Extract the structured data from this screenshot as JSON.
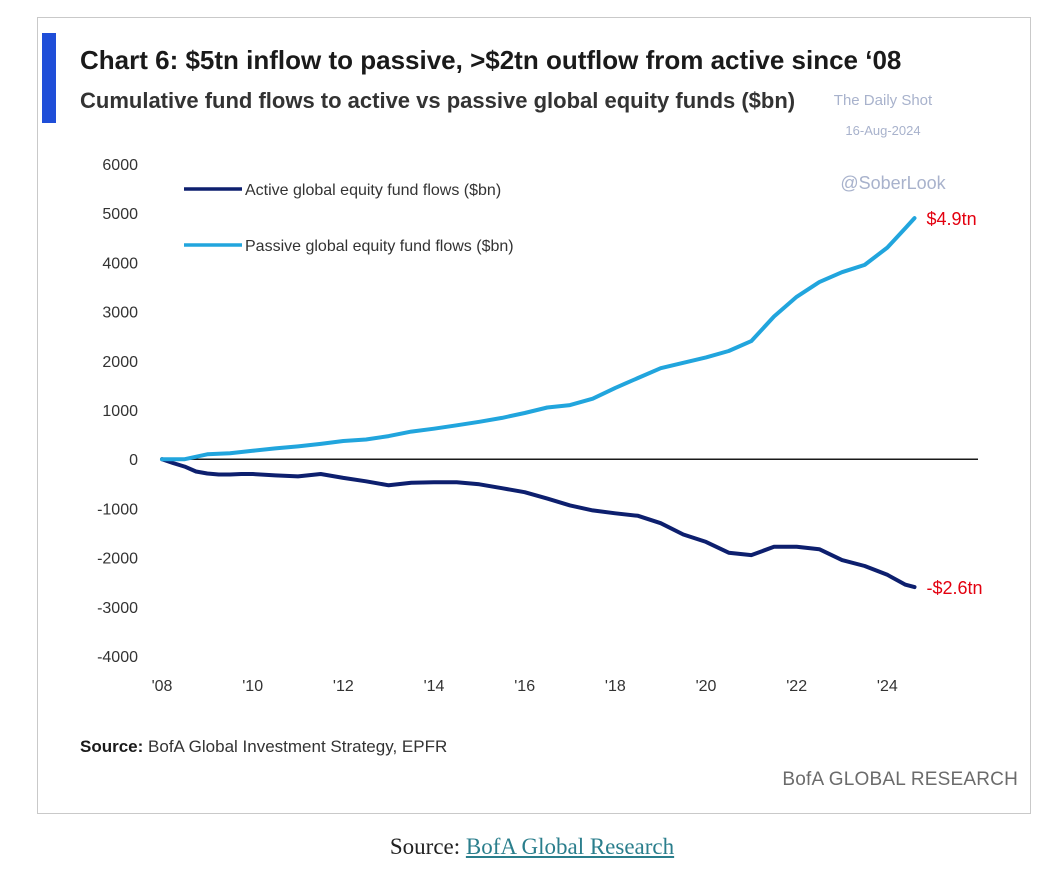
{
  "colors": {
    "accent_bar": "#1f4ed8",
    "active_series": "#0d1f6e",
    "passive_series": "#21a5dd",
    "end_label": "#e3000f",
    "zero_line": "#1a1a1a",
    "caption_link": "#2a7e8c"
  },
  "watermark": {
    "line1": "The Daily Shot",
    "line2": "16-Aug-2024",
    "handle": "@SoberLook"
  },
  "chart_data": {
    "type": "line",
    "title": "Chart 6: $5tn inflow to passive, >$2tn outflow from active since ‘08",
    "subtitle": "Cumulative fund flows to active vs passive global equity funds ($bn)",
    "xlabel": "",
    "ylabel": "",
    "xlim": [
      2008,
      2026
    ],
    "ylim": [
      -4000,
      6000
    ],
    "yticks": [
      6000,
      5000,
      4000,
      3000,
      2000,
      1000,
      0,
      -1000,
      -2000,
      -3000,
      -4000
    ],
    "ytick_labels": [
      "6000",
      "5000",
      "4000",
      "3000",
      "2000",
      "1000",
      "0",
      "-1000",
      "-2000",
      "-3000",
      "-4000"
    ],
    "xticks": [
      2008,
      2010,
      2012,
      2014,
      2016,
      2018,
      2020,
      2022,
      2024
    ],
    "xtick_labels": [
      "'08",
      "'10",
      "'12",
      "'14",
      "'16",
      "'18",
      "'20",
      "'22",
      "'24"
    ],
    "grid": false,
    "legend_position": "top-left",
    "zero_line": true,
    "series": [
      {
        "name": "Active global equity fund flows ($bn)",
        "x": [
          2008.0,
          2008.25,
          2008.5,
          2008.75,
          2009.0,
          2009.25,
          2009.5,
          2009.75,
          2010.0,
          2010.5,
          2011.0,
          2011.5,
          2012.0,
          2012.5,
          2013.0,
          2013.5,
          2014.0,
          2014.5,
          2015.0,
          2015.5,
          2016.0,
          2016.5,
          2017.0,
          2017.5,
          2018.0,
          2018.5,
          2019.0,
          2019.5,
          2020.0,
          2020.5,
          2021.0,
          2021.5,
          2022.0,
          2022.5,
          2023.0,
          2023.5,
          2024.0,
          2024.4,
          2024.6
        ],
        "y": [
          0,
          -80,
          -150,
          -250,
          -290,
          -310,
          -310,
          -300,
          -300,
          -330,
          -350,
          -300,
          -380,
          -450,
          -530,
          -480,
          -470,
          -470,
          -510,
          -590,
          -670,
          -800,
          -940,
          -1040,
          -1100,
          -1150,
          -1300,
          -1530,
          -1680,
          -1900,
          -1950,
          -1780,
          -1780,
          -1830,
          -2050,
          -2170,
          -2350,
          -2550,
          -2600
        ],
        "end_label": "-$2.6tn"
      },
      {
        "name": "Passive global equity fund flows ($bn)",
        "x": [
          2008.0,
          2008.5,
          2009.0,
          2009.5,
          2010.0,
          2010.5,
          2011.0,
          2011.5,
          2012.0,
          2012.5,
          2013.0,
          2013.5,
          2014.0,
          2014.5,
          2015.0,
          2015.5,
          2016.0,
          2016.5,
          2017.0,
          2017.5,
          2018.0,
          2018.5,
          2019.0,
          2019.5,
          2020.0,
          2020.5,
          2021.0,
          2021.5,
          2022.0,
          2022.5,
          2023.0,
          2023.5,
          2024.0,
          2024.4,
          2024.6
        ],
        "y": [
          0,
          0,
          100,
          120,
          170,
          220,
          260,
          310,
          370,
          400,
          470,
          560,
          620,
          690,
          760,
          840,
          940,
          1050,
          1100,
          1230,
          1450,
          1650,
          1850,
          1960,
          2070,
          2200,
          2400,
          2900,
          3300,
          3600,
          3800,
          3950,
          4300,
          4700,
          4900
        ],
        "end_label": "$4.9tn"
      }
    ],
    "source_label": "Source:",
    "source_text": "BofA Global Investment Strategy, EPFR",
    "branding": "BofA GLOBAL RESEARCH"
  },
  "caption": {
    "prefix": "Source: ",
    "link_text": "BofA Global Research"
  }
}
